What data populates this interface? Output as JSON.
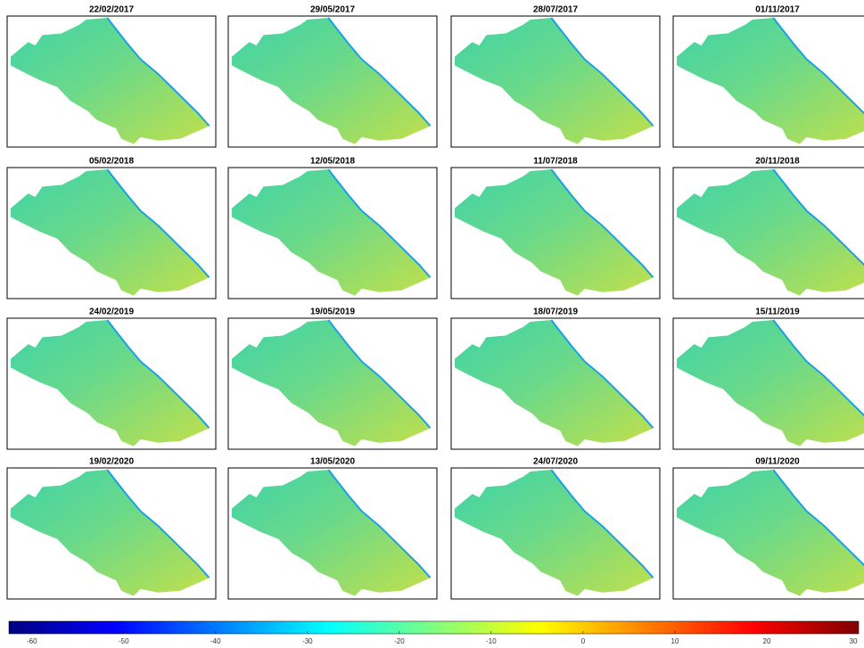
{
  "panels": [
    {
      "title": "22/02/2017"
    },
    {
      "title": "29/05/2017"
    },
    {
      "title": "28/07/2017"
    },
    {
      "title": "01/11/2017"
    },
    {
      "title": "05/02/2018"
    },
    {
      "title": "12/05/2018"
    },
    {
      "title": "11/07/2018"
    },
    {
      "title": "20/11/2018"
    },
    {
      "title": "24/02/2019"
    },
    {
      "title": "19/05/2019"
    },
    {
      "title": "18/07/2019"
    },
    {
      "title": "15/11/2019"
    },
    {
      "title": "19/02/2020"
    },
    {
      "title": "13/05/2020"
    },
    {
      "title": "24/07/2020"
    },
    {
      "title": "09/11/2020"
    }
  ],
  "colorbar": {
    "clim": [
      -62.5,
      30
    ],
    "ticks": [
      -60,
      -50,
      -40,
      -30,
      -20,
      -10,
      0,
      10,
      20,
      30
    ]
  }
}
